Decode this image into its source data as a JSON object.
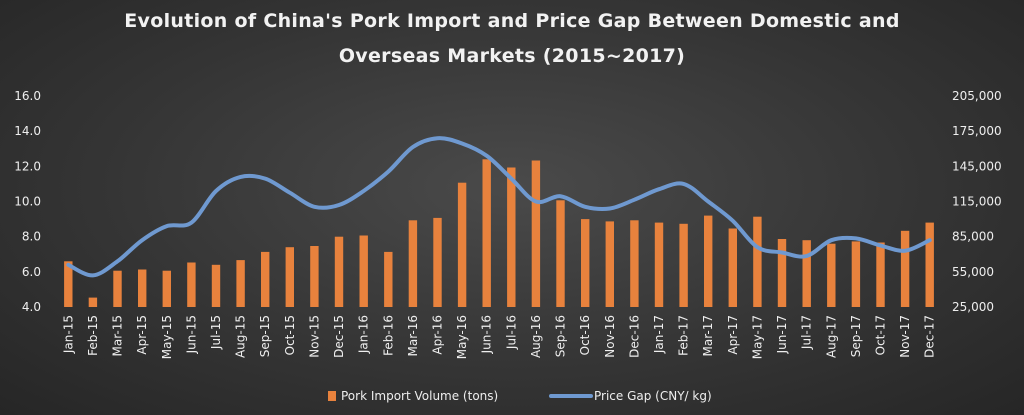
{
  "chart_data": {
    "type": "bar",
    "title_line1": "Evolution of China's Pork Import and Price Gap Between Domestic and",
    "title_line2": "Overseas Markets (2015~2017)",
    "categories": [
      "Jan-15",
      "Feb-15",
      "Mar-15",
      "Apr-15",
      "May-15",
      "Jun-15",
      "Jul-15",
      "Aug-15",
      "Sep-15",
      "Oct-15",
      "Nov-15",
      "Dec-15",
      "Jan-16",
      "Feb-16",
      "Mar-16",
      "Apr-16",
      "May-16",
      "Jun-16",
      "Jul-16",
      "Aug-16",
      "Sep-16",
      "Oct-16",
      "Nov-16",
      "Dec-16",
      "Jan-17",
      "Feb-17",
      "Mar-17",
      "Apr-17",
      "May-17",
      "Jun-17",
      "Jul-17",
      "Aug-17",
      "Sep-17",
      "Oct-17",
      "Nov-17",
      "Dec-17"
    ],
    "left_axis": {
      "min": 4.0,
      "max": 16.0,
      "ticks": [
        "4.0",
        "6.0",
        "8.0",
        "10.0",
        "12.0",
        "14.0",
        "16.0"
      ]
    },
    "right_axis": {
      "min": 25000,
      "max": 205000,
      "ticks": [
        "25,000",
        "55,000",
        "85,000",
        "115,000",
        "145,000",
        "175,000",
        "205,000"
      ]
    },
    "series": [
      {
        "name": "Pork Import Volume (tons)",
        "type": "bar",
        "axis": "right",
        "color": "#e8823d",
        "values": [
          64000,
          33000,
          56000,
          57000,
          56000,
          63000,
          61000,
          65000,
          72000,
          76000,
          77000,
          85000,
          86000,
          72000,
          99000,
          101000,
          131000,
          151000,
          144000,
          150000,
          116000,
          100000,
          98000,
          99000,
          97000,
          96000,
          103000,
          92000,
          102000,
          83000,
          82000,
          79000,
          81000,
          80000,
          90000,
          97000
        ]
      },
      {
        "name": "Price Gap  (CNY/ kg)",
        "type": "line",
        "axis": "left",
        "color": "#6f99d0",
        "values": [
          6.4,
          5.8,
          6.6,
          7.8,
          8.6,
          8.8,
          10.6,
          11.4,
          11.3,
          10.5,
          9.7,
          9.8,
          10.6,
          11.7,
          13.1,
          13.6,
          13.3,
          12.6,
          11.3,
          10.0,
          10.3,
          9.7,
          9.6,
          10.1,
          10.7,
          11.0,
          10.0,
          8.9,
          7.4,
          7.1,
          6.9,
          7.8,
          7.9,
          7.5,
          7.2,
          7.8
        ]
      }
    ],
    "grid": false,
    "legend_position": "bottom"
  }
}
